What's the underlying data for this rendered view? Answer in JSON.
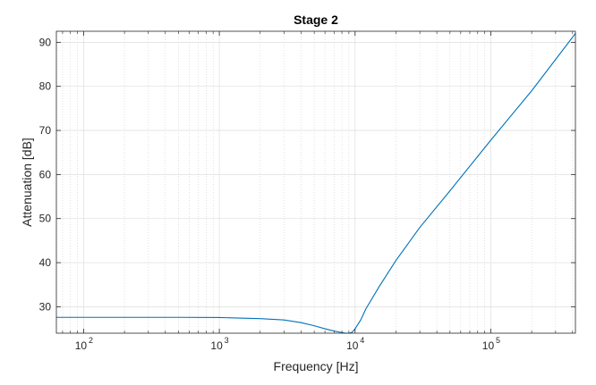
{
  "chart_data": {
    "type": "line",
    "title": "Stage 2",
    "xlabel": "Frequency [Hz]",
    "ylabel": "Attenuation [dB]",
    "xscale": "log",
    "xlim": [
      63,
      420000
    ],
    "ylim": [
      24,
      92.5
    ],
    "grid": true,
    "minor_grid": true,
    "x_ticks": [
      {
        "value": 100,
        "base": "10",
        "exp": "2"
      },
      {
        "value": 1000,
        "base": "10",
        "exp": "3"
      },
      {
        "value": 10000,
        "base": "10",
        "exp": "4"
      },
      {
        "value": 100000,
        "base": "10",
        "exp": "5"
      }
    ],
    "y_ticks": [
      30,
      40,
      50,
      60,
      70,
      80,
      90
    ],
    "line_color": "#0072bd",
    "series": [
      {
        "x": [
          63,
          100,
          200,
          500,
          1000,
          1500,
          2000,
          3000,
          4000,
          5000,
          6000,
          7000,
          7800,
          8500,
          9000,
          9500,
          10000,
          11000,
          12000,
          15000,
          20000,
          30000,
          50000,
          100000,
          200000,
          420000
        ],
        "values": [
          27.6,
          27.6,
          27.6,
          27.6,
          27.55,
          27.4,
          27.3,
          27.0,
          26.4,
          25.7,
          25.0,
          24.5,
          24.2,
          24.0,
          24.0,
          24.2,
          25.0,
          27.0,
          29.5,
          34.5,
          40.5,
          48.0,
          56.3,
          67.8,
          79.0,
          92.0
        ]
      }
    ]
  }
}
